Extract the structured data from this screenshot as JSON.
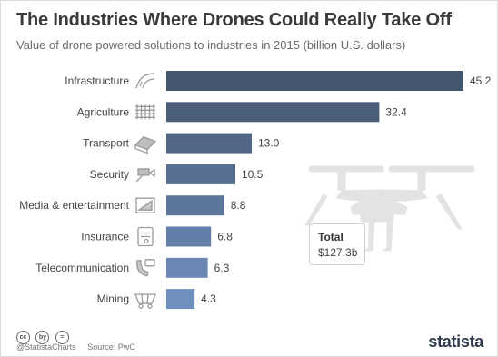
{
  "title": "The Industries Where Drones Could Really Take Off",
  "subtitle": "Value of drone powered solutions to industries in 2015 (billion U.S. dollars)",
  "total": {
    "label": "Total",
    "value": "$127.3b"
  },
  "footer": {
    "handle": "@StatistaCharts",
    "source": "Source: PwC"
  },
  "cc_icons": [
    "cc",
    "by",
    "="
  ],
  "logo": "statista",
  "icons": [
    "road-icon",
    "field-icon",
    "truck-icon",
    "camera-icon",
    "media-icon",
    "document-icon",
    "phone-icon",
    "mine-cart-icon"
  ],
  "colors": {
    "bar": "#4a5f79",
    "bar_light": "#6a88b2",
    "drone": "#e3e3e3"
  },
  "chart_data": {
    "type": "bar",
    "orientation": "horizontal",
    "categories": [
      "Infrastructure",
      "Agriculture",
      "Transport",
      "Security",
      "Media & entertainment",
      "Insurance",
      "Telecommunication",
      "Mining"
    ],
    "values": [
      45.2,
      32.4,
      13.0,
      10.5,
      8.8,
      6.8,
      6.3,
      4.3
    ],
    "value_labels": [
      "45.2",
      "32.4",
      "13.0",
      "10.5",
      "8.8",
      "6.8",
      "6.3",
      "4.3"
    ],
    "xlim": [
      0,
      45.2
    ],
    "grid": false,
    "legend": "none"
  }
}
